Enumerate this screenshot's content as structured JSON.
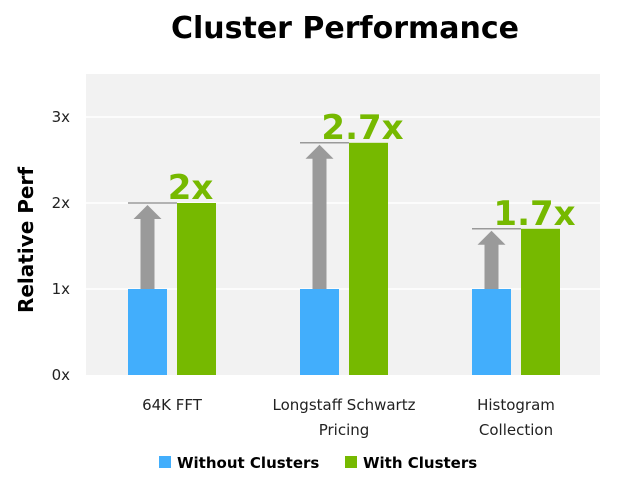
{
  "chart_data": {
    "type": "bar",
    "title": "Cluster Performance",
    "xlabel": "",
    "ylabel": "Relative Perf",
    "ylim": [
      0,
      3.4
    ],
    "yticks": [
      0,
      1,
      2,
      3
    ],
    "ytick_labels": [
      "0x",
      "1x",
      "2x",
      "3x"
    ],
    "grid": true,
    "legend_position": "bottom",
    "categories": [
      [
        "64K FFT"
      ],
      [
        "Longstaff Schwartz",
        "Pricing"
      ],
      [
        "Histogram",
        "Collection"
      ]
    ],
    "series": [
      {
        "name": "Without Clusters",
        "color": "#42aefc",
        "values": [
          1,
          1,
          1
        ]
      },
      {
        "name": "With Clusters",
        "color": "#76b900",
        "values": [
          2,
          2.7,
          1.7
        ]
      }
    ],
    "data_labels": [
      "2x",
      "2.7x",
      "1.7x"
    ],
    "arrow_color": "#9a9a9a",
    "background_color": "#f2f2f2"
  }
}
